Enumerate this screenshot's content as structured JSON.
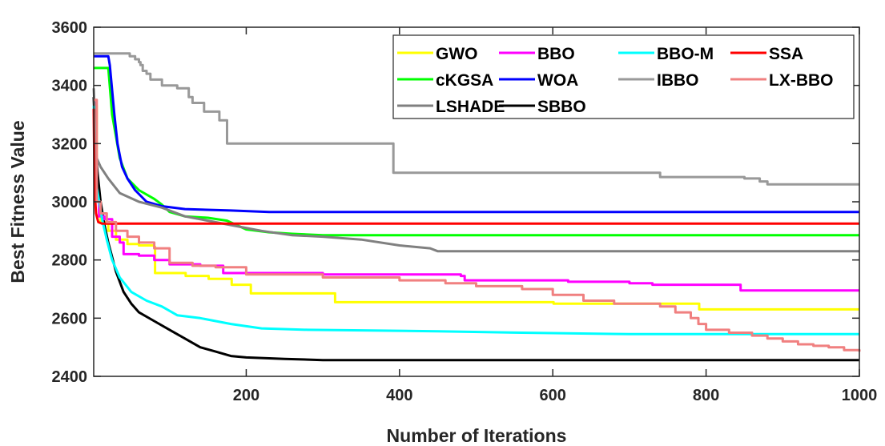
{
  "chart_data": {
    "type": "line",
    "title": "",
    "xlabel": "Number of Iterations",
    "ylabel": "Best Fitness Value",
    "xlim": [
      1,
      1000
    ],
    "ylim": [
      2400,
      3600
    ],
    "xticks": [
      200,
      400,
      600,
      800,
      1000
    ],
    "yticks": [
      2400,
      2600,
      2800,
      3000,
      3200,
      3400,
      3600
    ],
    "grid": false,
    "legend_position": "top-right",
    "series": [
      {
        "name": "GWO",
        "color": "#ffff00",
        "step": true,
        "points": [
          [
            1,
            3330
          ],
          [
            5,
            3000
          ],
          [
            10,
            2930
          ],
          [
            20,
            2900
          ],
          [
            30,
            2870
          ],
          [
            45,
            2855
          ],
          [
            60,
            2850
          ],
          [
            80,
            2845
          ],
          [
            81,
            2755
          ],
          [
            120,
            2755
          ],
          [
            121,
            2745
          ],
          [
            150,
            2745
          ],
          [
            151,
            2735
          ],
          [
            180,
            2735
          ],
          [
            181,
            2715
          ],
          [
            205,
            2715
          ],
          [
            206,
            2685
          ],
          [
            315,
            2685
          ],
          [
            316,
            2655
          ],
          [
            600,
            2655
          ],
          [
            601,
            2650
          ],
          [
            790,
            2650
          ],
          [
            791,
            2630
          ],
          [
            1000,
            2630
          ]
        ]
      },
      {
        "name": "cKGSA",
        "color": "#00ff00",
        "step": false,
        "points": [
          [
            1,
            3460
          ],
          [
            20,
            3460
          ],
          [
            25,
            3300
          ],
          [
            35,
            3150
          ],
          [
            45,
            3080
          ],
          [
            60,
            3040
          ],
          [
            80,
            3010
          ],
          [
            90,
            2990
          ],
          [
            100,
            2965
          ],
          [
            120,
            2950
          ],
          [
            150,
            2945
          ],
          [
            175,
            2935
          ],
          [
            200,
            2905
          ],
          [
            230,
            2895
          ],
          [
            260,
            2890
          ],
          [
            300,
            2885
          ],
          [
            1000,
            2885
          ]
        ]
      },
      {
        "name": "SBBO",
        "color": "#000000",
        "step": false,
        "points": [
          [
            1,
            3360
          ],
          [
            3,
            3200
          ],
          [
            6,
            3100
          ],
          [
            10,
            3000
          ],
          [
            15,
            2920
          ],
          [
            20,
            2860
          ],
          [
            30,
            2760
          ],
          [
            40,
            2690
          ],
          [
            50,
            2650
          ],
          [
            60,
            2620
          ],
          [
            80,
            2590
          ],
          [
            100,
            2560
          ],
          [
            120,
            2530
          ],
          [
            140,
            2500
          ],
          [
            160,
            2485
          ],
          [
            180,
            2470
          ],
          [
            200,
            2465
          ],
          [
            250,
            2460
          ],
          [
            300,
            2456
          ],
          [
            1000,
            2456
          ]
        ]
      },
      {
        "name": "BBO",
        "color": "#ff00ff",
        "step": true,
        "points": [
          [
            1,
            3340
          ],
          [
            3,
            3000
          ],
          [
            8,
            2950
          ],
          [
            15,
            2940
          ],
          [
            25,
            2880
          ],
          [
            35,
            2860
          ],
          [
            40,
            2820
          ],
          [
            60,
            2815
          ],
          [
            80,
            2800
          ],
          [
            100,
            2785
          ],
          [
            140,
            2780
          ],
          [
            170,
            2755
          ],
          [
            300,
            2750
          ],
          [
            480,
            2745
          ],
          [
            485,
            2730
          ],
          [
            620,
            2725
          ],
          [
            700,
            2720
          ],
          [
            730,
            2715
          ],
          [
            840,
            2715
          ],
          [
            845,
            2695
          ],
          [
            1000,
            2695
          ]
        ]
      },
      {
        "name": "WOA",
        "color": "#0000ff",
        "step": false,
        "points": [
          [
            1,
            3500
          ],
          [
            20,
            3500
          ],
          [
            22,
            3470
          ],
          [
            28,
            3300
          ],
          [
            32,
            3200
          ],
          [
            38,
            3120
          ],
          [
            45,
            3080
          ],
          [
            55,
            3040
          ],
          [
            70,
            3000
          ],
          [
            90,
            2985
          ],
          [
            120,
            2975
          ],
          [
            180,
            2970
          ],
          [
            230,
            2965
          ],
          [
            1000,
            2965
          ]
        ]
      },
      {
        "name": "LSHADE",
        "color": "#808080",
        "step": false,
        "points": [
          [
            1,
            3390
          ],
          [
            5,
            3150
          ],
          [
            10,
            3120
          ],
          [
            20,
            3080
          ],
          [
            35,
            3030
          ],
          [
            60,
            3000
          ],
          [
            90,
            2980
          ],
          [
            120,
            2950
          ],
          [
            150,
            2935
          ],
          [
            180,
            2920
          ],
          [
            220,
            2900
          ],
          [
            260,
            2885
          ],
          [
            300,
            2880
          ],
          [
            350,
            2870
          ],
          [
            400,
            2850
          ],
          [
            440,
            2840
          ],
          [
            450,
            2830
          ],
          [
            1000,
            2830
          ]
        ]
      },
      {
        "name": "BBO-M",
        "color": "#00ffff",
        "step": false,
        "points": [
          [
            1,
            3330
          ],
          [
            5,
            3050
          ],
          [
            12,
            2940
          ],
          [
            18,
            2870
          ],
          [
            25,
            2800
          ],
          [
            35,
            2740
          ],
          [
            50,
            2690
          ],
          [
            70,
            2660
          ],
          [
            90,
            2640
          ],
          [
            110,
            2610
          ],
          [
            140,
            2600
          ],
          [
            180,
            2580
          ],
          [
            220,
            2565
          ],
          [
            280,
            2560
          ],
          [
            450,
            2555
          ],
          [
            560,
            2550
          ],
          [
            700,
            2545
          ],
          [
            1000,
            2545
          ]
        ]
      },
      {
        "name": "IBBO",
        "color": "#999999",
        "step": true,
        "points": [
          [
            1,
            3510
          ],
          [
            45,
            3510
          ],
          [
            48,
            3500
          ],
          [
            55,
            3490
          ],
          [
            60,
            3480
          ],
          [
            62,
            3470
          ],
          [
            65,
            3450
          ],
          [
            70,
            3440
          ],
          [
            75,
            3420
          ],
          [
            90,
            3400
          ],
          [
            110,
            3390
          ],
          [
            125,
            3360
          ],
          [
            130,
            3340
          ],
          [
            145,
            3310
          ],
          [
            165,
            3280
          ],
          [
            175,
            3200
          ],
          [
            390,
            3200
          ],
          [
            392,
            3100
          ],
          [
            700,
            3100
          ],
          [
            740,
            3085
          ],
          [
            850,
            3080
          ],
          [
            870,
            3070
          ],
          [
            880,
            3060
          ],
          [
            1000,
            3060
          ]
        ]
      },
      {
        "name": "SSA",
        "color": "#ff0000",
        "step": false,
        "points": [
          [
            1,
            3320
          ],
          [
            2,
            3050
          ],
          [
            4,
            2960
          ],
          [
            7,
            2930
          ],
          [
            12,
            2925
          ],
          [
            1000,
            2925
          ]
        ]
      },
      {
        "name": "LX-BBO",
        "color": "#f08080",
        "step": true,
        "points": [
          [
            1,
            3350
          ],
          [
            5,
            3000
          ],
          [
            10,
            2960
          ],
          [
            18,
            2930
          ],
          [
            30,
            2900
          ],
          [
            45,
            2880
          ],
          [
            60,
            2860
          ],
          [
            80,
            2840
          ],
          [
            100,
            2790
          ],
          [
            130,
            2780
          ],
          [
            160,
            2775
          ],
          [
            200,
            2750
          ],
          [
            300,
            2740
          ],
          [
            400,
            2730
          ],
          [
            460,
            2720
          ],
          [
            500,
            2710
          ],
          [
            560,
            2700
          ],
          [
            600,
            2680
          ],
          [
            640,
            2660
          ],
          [
            680,
            2650
          ],
          [
            740,
            2640
          ],
          [
            760,
            2620
          ],
          [
            780,
            2600
          ],
          [
            790,
            2580
          ],
          [
            800,
            2560
          ],
          [
            830,
            2550
          ],
          [
            860,
            2540
          ],
          [
            880,
            2530
          ],
          [
            900,
            2520
          ],
          [
            920,
            2510
          ],
          [
            940,
            2505
          ],
          [
            960,
            2500
          ],
          [
            980,
            2490
          ],
          [
            1000,
            2485
          ]
        ]
      }
    ],
    "legend_layout": [
      [
        "GWO",
        "BBO",
        "BBO-M",
        "SSA"
      ],
      [
        "cKGSA",
        "WOA",
        "IBBO",
        "LX-BBO"
      ],
      [
        "LSHADE",
        "SBBO"
      ]
    ]
  }
}
